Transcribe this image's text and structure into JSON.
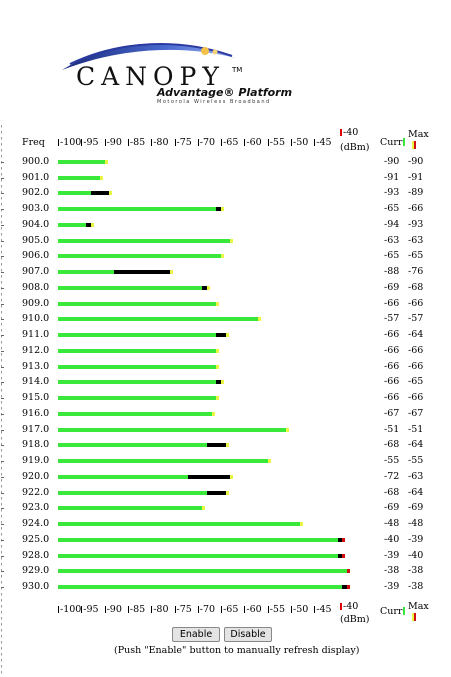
{
  "corner_mark": "'",
  "logo": {
    "word": "CANOPY",
    "tm": "TM",
    "subtitle": "Advantage® Platform",
    "tagline": "Motorola Wireless Broadband"
  },
  "headers": {
    "freq": "Freq",
    "dbm": "(dBm)",
    "curr": "Curr",
    "max": "Max",
    "top_scale_end": "-40"
  },
  "ticks": [
    "-100",
    "-95",
    "-90",
    "-85",
    "-80",
    "-75",
    "-70",
    "-65",
    "-60",
    "-55",
    "-50",
    "-45"
  ],
  "colors": {
    "current": "#39e83a",
    "range": "#000000",
    "max": "#e8f542",
    "peak": "#d01010"
  },
  "rows": [
    {
      "freq": "900.0",
      "cur": "-90",
      "max": "-90"
    },
    {
      "freq": "901.0",
      "cur": "-91",
      "max": "-91"
    },
    {
      "freq": "902.0",
      "cur": "-93",
      "max": "-89"
    },
    {
      "freq": "903.0",
      "cur": "-65",
      "max": "-66"
    },
    {
      "freq": "904.0",
      "cur": "-94",
      "max": "-93"
    },
    {
      "freq": "905.0",
      "cur": "-63",
      "max": "-63"
    },
    {
      "freq": "906.0",
      "cur": "-65",
      "max": "-65"
    },
    {
      "freq": "907.0",
      "cur": "-88",
      "max": "-76"
    },
    {
      "freq": "908.0",
      "cur": "-69",
      "max": "-68"
    },
    {
      "freq": "909.0",
      "cur": "-66",
      "max": "-66"
    },
    {
      "freq": "910.0",
      "cur": "-57",
      "max": "-57"
    },
    {
      "freq": "911.0",
      "cur": "-66",
      "max": "-64"
    },
    {
      "freq": "912.0",
      "cur": "-66",
      "max": "-66"
    },
    {
      "freq": "913.0",
      "cur": "-66",
      "max": "-66"
    },
    {
      "freq": "914.0",
      "cur": "-66",
      "max": "-65"
    },
    {
      "freq": "915.0",
      "cur": "-66",
      "max": "-66"
    },
    {
      "freq": "916.0",
      "cur": "-67",
      "max": "-67"
    },
    {
      "freq": "917.0",
      "cur": "-51",
      "max": "-51"
    },
    {
      "freq": "918.0",
      "cur": "-68",
      "max": "-64"
    },
    {
      "freq": "919.0",
      "cur": "-55",
      "max": "-55"
    },
    {
      "freq": "920.0",
      "cur": "-72",
      "max": "-63"
    },
    {
      "freq": "922.0",
      "cur": "-68",
      "max": "-64"
    },
    {
      "freq": "923.0",
      "cur": "-69",
      "max": "-69"
    },
    {
      "freq": "924.0",
      "cur": "-48",
      "max": "-48"
    },
    {
      "freq": "925.0",
      "cur": "-40",
      "max": "-39"
    },
    {
      "freq": "928.0",
      "cur": "-39",
      "max": "-40"
    },
    {
      "freq": "929.0",
      "cur": "-38",
      "max": "-38"
    },
    {
      "freq": "930.0",
      "cur": "-39",
      "max": "-38"
    }
  ],
  "buttons": {
    "enable": "Enable",
    "disable": "Disable"
  },
  "note": "(Push \"Enable\" button to manually refresh display)"
}
